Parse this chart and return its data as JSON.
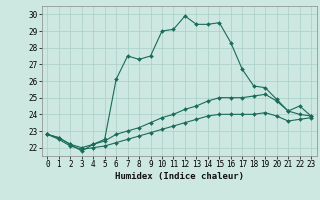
{
  "xlabel": "Humidex (Indice chaleur)",
  "ylabel": "",
  "background_color": "#cce8e0",
  "grid_color": "#aacfc8",
  "line_color": "#1a6b5a",
  "xlim": [
    -0.5,
    23.5
  ],
  "ylim": [
    21.5,
    30.5
  ],
  "yticks": [
    22,
    23,
    24,
    25,
    26,
    27,
    28,
    29,
    30
  ],
  "xticks": [
    0,
    1,
    2,
    3,
    4,
    5,
    6,
    7,
    8,
    9,
    10,
    11,
    12,
    13,
    14,
    15,
    16,
    17,
    18,
    19,
    20,
    21,
    22,
    23
  ],
  "series": [
    [
      22.8,
      22.6,
      22.2,
      21.8,
      22.2,
      22.5,
      26.1,
      27.5,
      27.3,
      27.5,
      29.0,
      29.1,
      29.9,
      29.4,
      29.4,
      29.5,
      28.3,
      26.7,
      25.7,
      25.6,
      24.9,
      24.2,
      24.5,
      23.9
    ],
    [
      22.8,
      22.6,
      22.2,
      22.0,
      22.2,
      22.4,
      22.8,
      23.0,
      23.2,
      23.5,
      23.8,
      24.0,
      24.3,
      24.5,
      24.8,
      25.0,
      25.0,
      25.0,
      25.1,
      25.2,
      24.8,
      24.2,
      24.0,
      23.9
    ],
    [
      22.8,
      22.5,
      22.1,
      21.9,
      22.0,
      22.1,
      22.3,
      22.5,
      22.7,
      22.9,
      23.1,
      23.3,
      23.5,
      23.7,
      23.9,
      24.0,
      24.0,
      24.0,
      24.0,
      24.1,
      23.9,
      23.6,
      23.7,
      23.8
    ]
  ]
}
